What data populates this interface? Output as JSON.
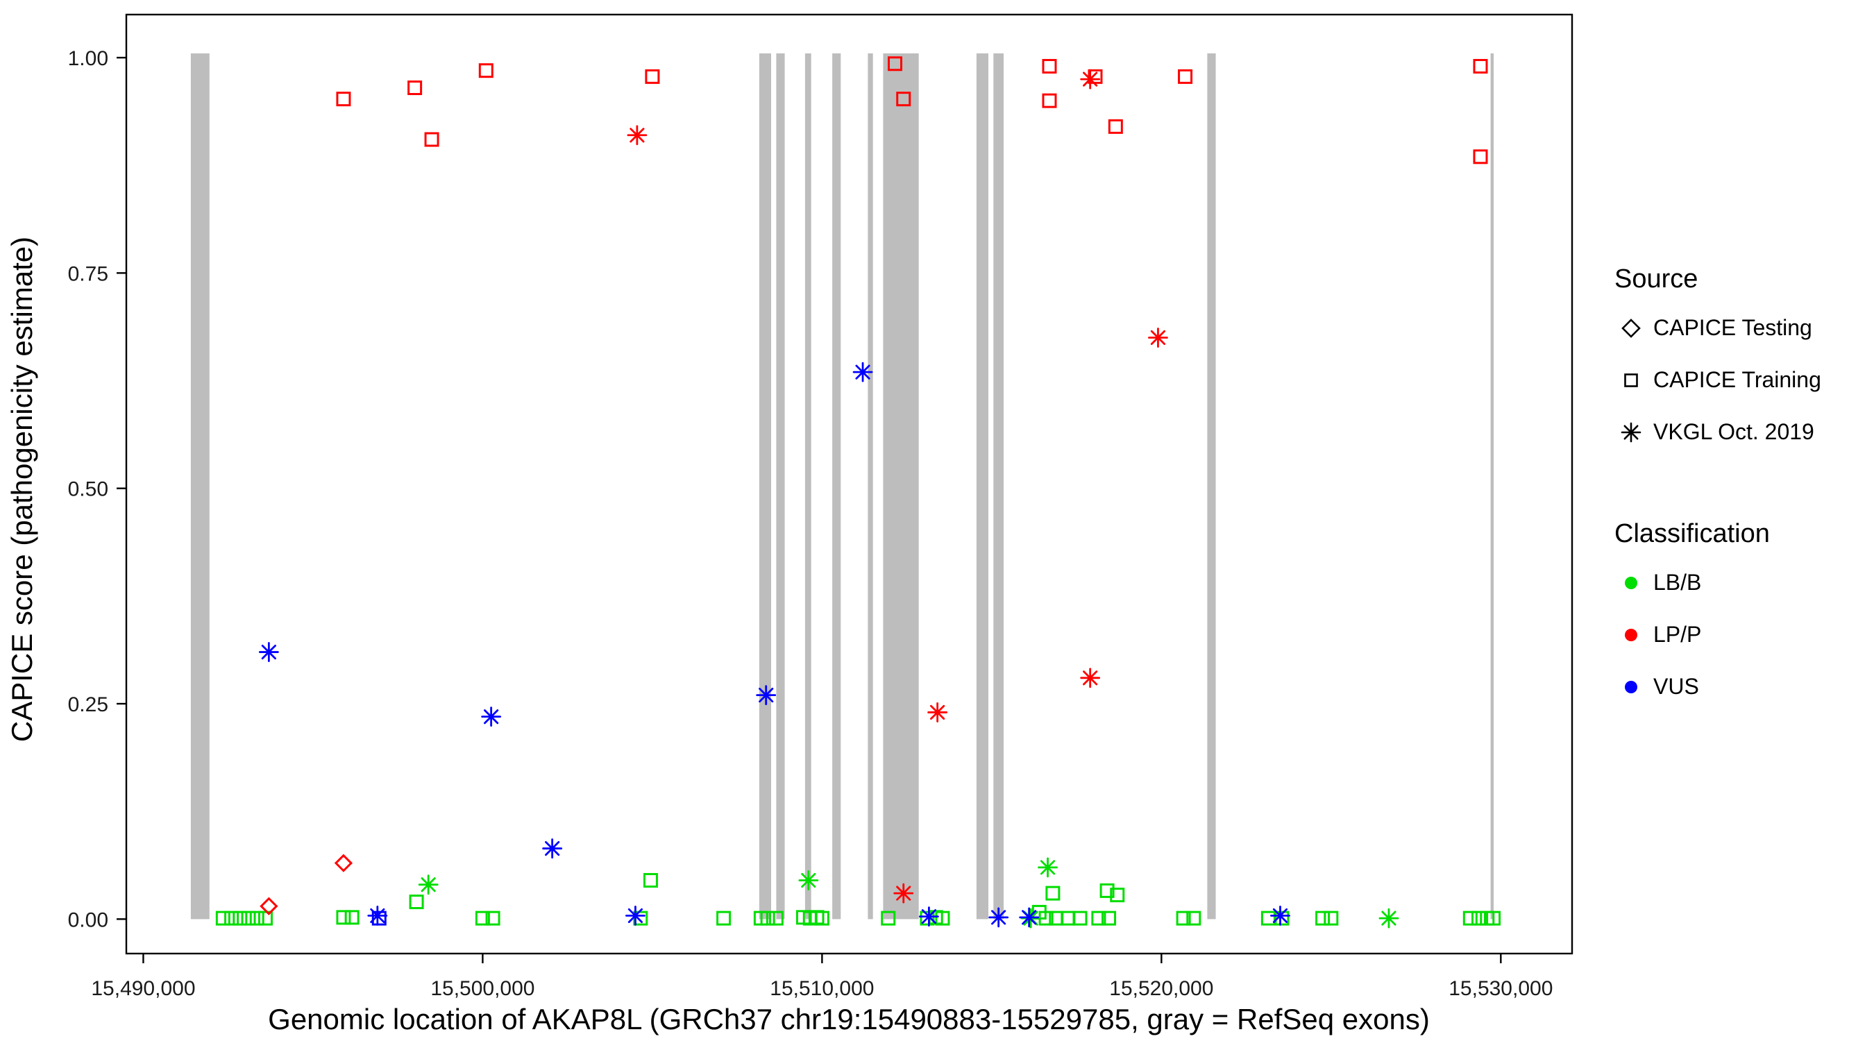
{
  "chart_data": {
    "type": "scatter",
    "title": "",
    "xlabel": "Genomic location of AKAP8L (GRCh37 chr19:15490883-15529785, gray = RefSeq exons)",
    "ylabel": "CAPICE score (pathogenicity estimate)",
    "xlim": [
      15489500,
      15532100
    ],
    "ylim": [
      -0.04,
      1.05
    ],
    "grid": false,
    "x_ticks": [
      {
        "value": 15490000,
        "label": "15,490,000"
      },
      {
        "value": 15500000,
        "label": "15,500,000"
      },
      {
        "value": 15510000,
        "label": "15,510,000"
      },
      {
        "value": 15520000,
        "label": "15,520,000"
      },
      {
        "value": 15530000,
        "label": "15,530,000"
      }
    ],
    "y_ticks": [
      {
        "value": 0.0,
        "label": "0.00"
      },
      {
        "value": 0.25,
        "label": "0.25"
      },
      {
        "value": 0.5,
        "label": "0.50"
      },
      {
        "value": 0.75,
        "label": "0.75"
      },
      {
        "value": 1.0,
        "label": "1.00"
      }
    ],
    "exon_color": "#BDBDBD",
    "exons": [
      [
        15491400,
        15491950
      ],
      [
        15508150,
        15508500
      ],
      [
        15508650,
        15508900
      ],
      [
        15509500,
        15509680
      ],
      [
        15510300,
        15510550
      ],
      [
        15511350,
        15511500
      ],
      [
        15511800,
        15512850
      ],
      [
        15514550,
        15514900
      ],
      [
        15515050,
        15515350
      ],
      [
        15521350,
        15521600
      ],
      [
        15529700,
        15529790
      ]
    ],
    "colors": {
      "LB/B": "#00DD00",
      "LP/P": "#FF0000",
      "VUS": "#0000FF",
      "legend_marker": "#000000"
    },
    "shapes": {
      "CAPICE Testing": "diamond",
      "CAPICE Training": "square",
      "VKGL Oct. 2019": "asterisk"
    },
    "legend": {
      "position": "right",
      "source_title": "Source",
      "source_items": [
        {
          "label": "CAPICE Testing",
          "shape": "diamond"
        },
        {
          "label": "CAPICE Training",
          "shape": "square"
        },
        {
          "label": "VKGL Oct. 2019",
          "shape": "asterisk"
        }
      ],
      "classification_title": "Classification",
      "classification_items": [
        {
          "label": "LB/B",
          "color": "#00DD00"
        },
        {
          "label": "LP/P",
          "color": "#FF0000"
        },
        {
          "label": "VUS",
          "color": "#0000FF"
        }
      ]
    },
    "series": [
      {
        "name": "CAPICE Training / LB/B",
        "source": "CAPICE Training",
        "classification": "LB/B",
        "shape": "square",
        "color": "#00DD00",
        "points": [
          [
            15498050,
            0.02
          ],
          [
            15504950,
            0.045
          ],
          [
            15516800,
            0.03
          ],
          [
            15518400,
            0.033
          ],
          [
            15518700,
            0.028
          ],
          [
            15492350,
            0.001
          ],
          [
            15492600,
            0.001
          ],
          [
            15492850,
            0.001
          ],
          [
            15493100,
            0.001
          ],
          [
            15493350,
            0.001
          ],
          [
            15493600,
            0.001
          ],
          [
            15495900,
            0.002
          ],
          [
            15496150,
            0.002
          ],
          [
            15500000,
            0.001
          ],
          [
            15500300,
            0.001
          ],
          [
            15504650,
            0.001
          ],
          [
            15507100,
            0.001
          ],
          [
            15508200,
            0.001
          ],
          [
            15508400,
            0.001
          ],
          [
            15508650,
            0.001
          ],
          [
            15509450,
            0.002
          ],
          [
            15509650,
            0.001
          ],
          [
            15509850,
            0.002
          ],
          [
            15510000,
            0.001
          ],
          [
            15511950,
            0.001
          ],
          [
            15513100,
            0.001
          ],
          [
            15513350,
            0.002
          ],
          [
            15513550,
            0.001
          ],
          [
            15516400,
            0.008
          ],
          [
            15516600,
            0.001
          ],
          [
            15516900,
            0.001
          ],
          [
            15517250,
            0.001
          ],
          [
            15517600,
            0.001
          ],
          [
            15518150,
            0.001
          ],
          [
            15518450,
            0.001
          ],
          [
            15520650,
            0.001
          ],
          [
            15520950,
            0.001
          ],
          [
            15523150,
            0.001
          ],
          [
            15523550,
            0.001
          ],
          [
            15524750,
            0.001
          ],
          [
            15525000,
            0.001
          ],
          [
            15529100,
            0.001
          ],
          [
            15529350,
            0.001
          ],
          [
            15529600,
            0.001
          ],
          [
            15529780,
            0.001
          ]
        ]
      },
      {
        "name": "VKGL Oct. 2019 / LB/B",
        "source": "VKGL Oct. 2019",
        "classification": "LB/B",
        "shape": "asterisk",
        "color": "#00DD00",
        "points": [
          [
            15498400,
            0.04
          ],
          [
            15509600,
            0.045
          ],
          [
            15516650,
            0.06
          ],
          [
            15516150,
            0.001
          ],
          [
            15526700,
            0.001
          ]
        ]
      },
      {
        "name": "CAPICE Training / VUS",
        "source": "CAPICE Training",
        "classification": "VUS",
        "shape": "square",
        "color": "#0000FF",
        "points": [
          [
            15496950,
            0.001
          ]
        ]
      },
      {
        "name": "VKGL Oct. 2019 / VUS",
        "source": "VKGL Oct. 2019",
        "classification": "VUS",
        "shape": "asterisk",
        "color": "#0000FF",
        "points": [
          [
            15493700,
            0.31
          ],
          [
            15500250,
            0.235
          ],
          [
            15502050,
            0.082
          ],
          [
            15508350,
            0.26
          ],
          [
            15511200,
            0.635
          ],
          [
            15496900,
            0.004
          ],
          [
            15504500,
            0.004
          ],
          [
            15513150,
            0.003
          ],
          [
            15515200,
            0.002
          ],
          [
            15516100,
            0.002
          ],
          [
            15523500,
            0.004
          ]
        ]
      },
      {
        "name": "CAPICE Testing / LP/P",
        "source": "CAPICE Testing",
        "classification": "LP/P",
        "shape": "diamond",
        "color": "#FF0000",
        "points": [
          [
            15493700,
            0.015
          ],
          [
            15495900,
            0.065
          ]
        ]
      },
      {
        "name": "CAPICE Training / LP/P",
        "source": "CAPICE Training",
        "classification": "LP/P",
        "shape": "square",
        "color": "#FF0000",
        "points": [
          [
            15495900,
            0.952
          ],
          [
            15498000,
            0.965
          ],
          [
            15498500,
            0.905
          ],
          [
            15500100,
            0.985
          ],
          [
            15505000,
            0.978
          ],
          [
            15512150,
            0.993
          ],
          [
            15512400,
            0.952
          ],
          [
            15516700,
            0.99
          ],
          [
            15516700,
            0.95
          ],
          [
            15518050,
            0.978
          ],
          [
            15518650,
            0.92
          ],
          [
            15520700,
            0.978
          ],
          [
            15529400,
            0.99
          ],
          [
            15529400,
            0.885
          ]
        ]
      },
      {
        "name": "VKGL Oct. 2019 / LP/P",
        "source": "VKGL Oct. 2019",
        "classification": "LP/P",
        "shape": "asterisk",
        "color": "#FF0000",
        "points": [
          [
            15504550,
            0.91
          ],
          [
            15517900,
            0.975
          ],
          [
            15519900,
            0.675
          ],
          [
            15517900,
            0.28
          ],
          [
            15513400,
            0.24
          ],
          [
            15512400,
            0.03
          ]
        ]
      }
    ]
  }
}
